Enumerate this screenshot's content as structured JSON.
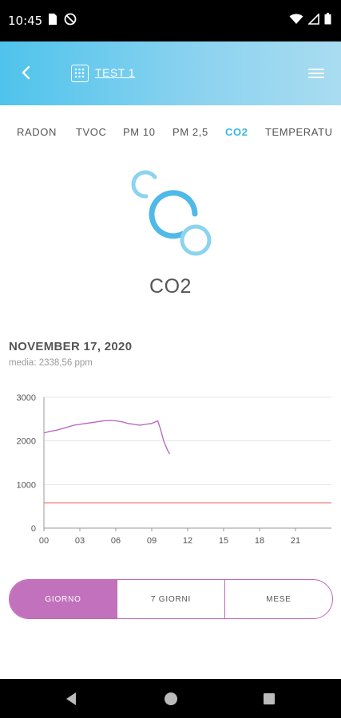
{
  "status_bar": {
    "time": "10:45",
    "left_icons": [
      "sd-card-icon",
      "do-not-disturb-icon"
    ],
    "right_icons": [
      "wifi-icon",
      "signal-icon",
      "battery-icon"
    ]
  },
  "header": {
    "back_icon": "chevron-left-icon",
    "device_icon": "grid-device-icon",
    "device_name": "TEST 1",
    "menu_icon": "hamburger-menu-icon",
    "gradient_start": "#4fc3ec",
    "gradient_end": "#a9dcf1"
  },
  "tabs": [
    {
      "label": "RADON",
      "active": false
    },
    {
      "label": "TVOC",
      "active": false
    },
    {
      "label": "PM 10",
      "active": false
    },
    {
      "label": "PM 2,5",
      "active": false
    },
    {
      "label": "CO2",
      "active": true
    },
    {
      "label": "TEMPERATU",
      "active": false
    }
  ],
  "sensor": {
    "icon": "co2-bubbles-icon",
    "title": "CO2"
  },
  "reading": {
    "date": "NOVEMBER 17, 2020",
    "average": "media: 2338,56 ppm"
  },
  "chart_data": {
    "type": "line",
    "x_ticks": [
      "00",
      "03",
      "06",
      "09",
      "12",
      "15",
      "18",
      "21"
    ],
    "xlim": [
      0,
      24
    ],
    "y_ticks": [
      "0",
      "1000",
      "2000",
      "3000"
    ],
    "ylim": [
      0,
      3000
    ],
    "grid": true,
    "series": [
      {
        "color": "#b760c0",
        "x": [
          0,
          0.5,
          1,
          1.5,
          2,
          2.5,
          3,
          3.5,
          4,
          4.5,
          5,
          5.5,
          6,
          6.5,
          7,
          7.5,
          8,
          8.5,
          9,
          9.5,
          9.7,
          10.0,
          10.3,
          10.5
        ],
        "values": [
          2180,
          2220,
          2240,
          2280,
          2320,
          2360,
          2380,
          2400,
          2420,
          2440,
          2460,
          2470,
          2460,
          2440,
          2400,
          2380,
          2360,
          2380,
          2400,
          2460,
          2300,
          2000,
          1800,
          1700
        ]
      },
      {
        "color": "#f06060",
        "x": [
          0,
          24
        ],
        "values": [
          580,
          580
        ]
      }
    ]
  },
  "range_toggle": [
    {
      "label": "GIORNO",
      "active": true
    },
    {
      "label": "7 GIORNI",
      "active": false
    },
    {
      "label": "MESE",
      "active": false
    }
  ],
  "accent_color": "#38b6e3",
  "toggle_color": "#c272bc",
  "nav_bar": {
    "buttons": [
      "back-triangle-icon",
      "home-circle-icon",
      "recents-square-icon"
    ]
  }
}
